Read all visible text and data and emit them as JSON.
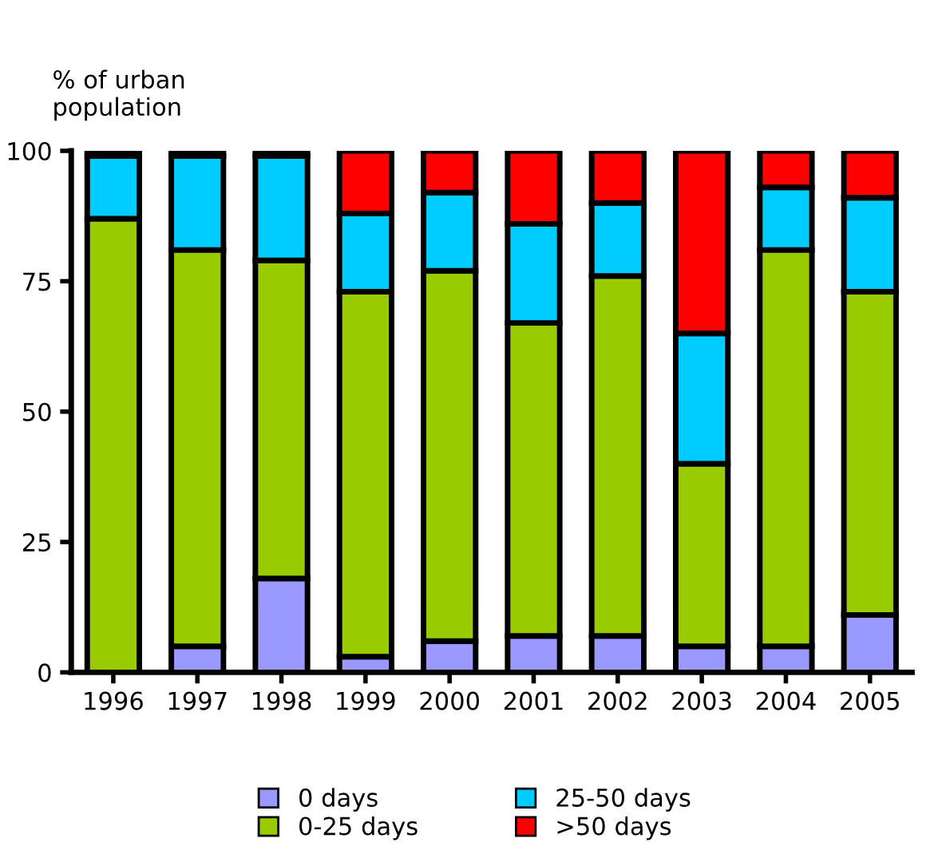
{
  "chart_data": {
    "type": "bar",
    "stacked": true,
    "ylabel": "% of urban\npopulation",
    "categories": [
      "1996",
      "1997",
      "1998",
      "1999",
      "2000",
      "2001",
      "2002",
      "2003",
      "2004",
      "2005"
    ],
    "series": [
      {
        "name": "0 days",
        "color": "#9999ff",
        "values": [
          0,
          5,
          18,
          3,
          6,
          7,
          7,
          5,
          5,
          11
        ]
      },
      {
        "name": "0-25 days",
        "color": "#99cc00",
        "values": [
          87,
          76,
          61,
          70,
          71,
          60,
          69,
          35,
          76,
          62
        ]
      },
      {
        "name": "25-50 days",
        "color": "#00ccff",
        "values": [
          12,
          18,
          20,
          15,
          15,
          19,
          14,
          25,
          12,
          18
        ]
      },
      {
        "name": ">50 days",
        "color": "#ff0000",
        "values": [
          1,
          1,
          1,
          12,
          8,
          14,
          10,
          35,
          7,
          9
        ]
      }
    ],
    "ylim": [
      0,
      100
    ],
    "yticks": [
      0,
      25,
      50,
      75,
      100
    ],
    "grid": false,
    "legend": "bottom"
  }
}
